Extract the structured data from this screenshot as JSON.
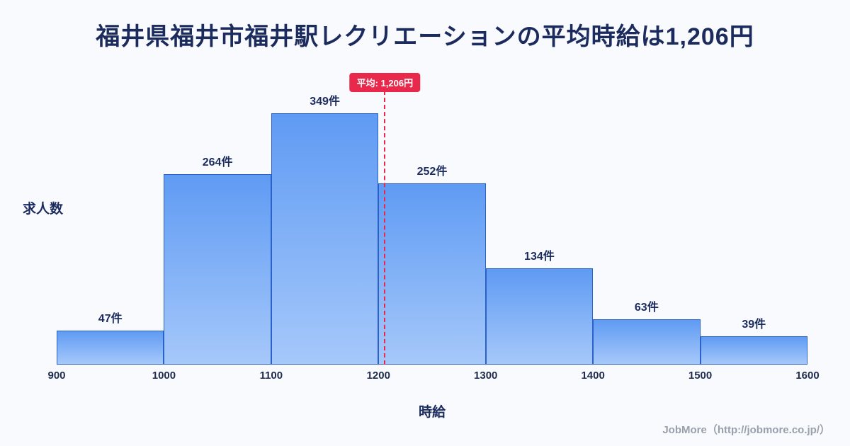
{
  "title": "福井県福井市福井駅レクリエーションの平均時給は1,206円",
  "chart_data": {
    "type": "bar",
    "title": "福井県福井市福井駅レクリエーションの平均時給は1,206円",
    "bins": [
      900,
      1000,
      1100,
      1200,
      1300,
      1400,
      1500,
      1600
    ],
    "x_ticks": [
      "900",
      "1000",
      "1100",
      "1200",
      "1300",
      "1400",
      "1500",
      "1600"
    ],
    "values": [
      47,
      264,
      349,
      252,
      134,
      63,
      39
    ],
    "bar_labels": [
      "47件",
      "264件",
      "349件",
      "252件",
      "134件",
      "63件",
      "39件"
    ],
    "xlabel": "時給",
    "ylabel": "求人数",
    "ylim": [
      0,
      349
    ],
    "average": 1206,
    "average_label": "平均: 1,206円",
    "grid": false,
    "legend": "none"
  },
  "footer": {
    "credit": "JobMore（http://jobmore.co.jp/）"
  },
  "colors": {
    "title_color": "#1c2b5e",
    "bar_top": "#5f9bf3",
    "bar_bottom": "#a6c8fa",
    "bar_border": "#2b62c9",
    "accent_red": "#e8294b",
    "background": "#f8fafd",
    "footer_text": "#98a0ac"
  }
}
